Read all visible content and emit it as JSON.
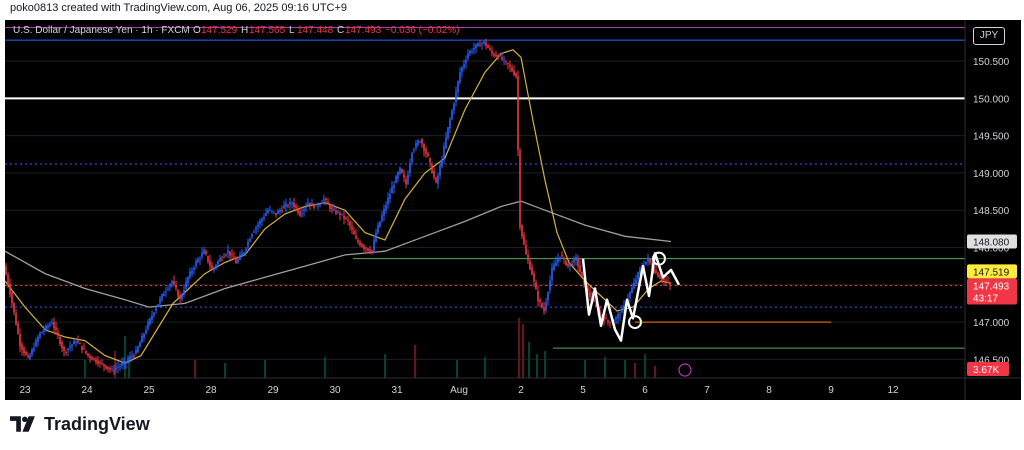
{
  "header": {
    "caption": "poko0813 created with TradingView.com, Aug 06, 2025 09:16 UTC+9"
  },
  "brand": {
    "name": "TradingView",
    "logo_icon": "tradingview-logo-icon"
  },
  "currency_label": "JPY",
  "colors": {
    "background": "#000000",
    "up_candle": "#2962ff",
    "down_candle": "#f23645",
    "fast_ma": "#d4b33a",
    "slow_ma": "#9e9e9e",
    "pink_line": "#b23ab2",
    "blue_line": "#2962ff",
    "white_line": "#ffffff",
    "dotted_blue": "#3b5bff",
    "green_line": "#4caf50",
    "orange_line": "#ff7a1a",
    "red_dotted": "#f23645",
    "volume_up": "#0c3d32",
    "volume_down": "#5a1a20",
    "pattern": "#ffffff"
  },
  "chart_data": {
    "type": "candlestick",
    "title": "U.S. Dollar / Japanese Yen · 1h · FXCM",
    "ohlc_legend": {
      "o_label": "O",
      "o": "147.529",
      "h_label": "H",
      "h": "147.565",
      "l_label": "L",
      "l": "147.448",
      "c_label": "C",
      "c": "147.493",
      "chg": "−0.036 (−0.02%)"
    },
    "xlim": [
      0,
      480
    ],
    "ylim": [
      146.25,
      151.05
    ],
    "y_ticks": [
      "146.500",
      "147.000",
      "147.500",
      "148.000",
      "148.500",
      "149.000",
      "149.500",
      "150.000",
      "150.500"
    ],
    "x_ticks": [
      {
        "label": "23",
        "x": 10
      },
      {
        "label": "24",
        "x": 41
      },
      {
        "label": "25",
        "x": 72
      },
      {
        "label": "28",
        "x": 103
      },
      {
        "label": "29",
        "x": 134
      },
      {
        "label": "30",
        "x": 165
      },
      {
        "label": "31",
        "x": 196
      },
      {
        "label": "Aug",
        "x": 227
      },
      {
        "label": "2",
        "x": 258
      },
      {
        "label": "5",
        "x": 289
      },
      {
        "label": "6",
        "x": 320
      },
      {
        "label": "7",
        "x": 351
      },
      {
        "label": "8",
        "x": 382
      },
      {
        "label": "9",
        "x": 413
      },
      {
        "label": "12",
        "x": 444
      }
    ],
    "price_path": [
      [
        0,
        147.75
      ],
      [
        3,
        147.4
      ],
      [
        8,
        146.7
      ],
      [
        12,
        146.5
      ],
      [
        18,
        146.85
      ],
      [
        24,
        147.0
      ],
      [
        30,
        146.6
      ],
      [
        36,
        146.75
      ],
      [
        42,
        146.55
      ],
      [
        48,
        146.45
      ],
      [
        54,
        146.35
      ],
      [
        60,
        146.45
      ],
      [
        66,
        146.6
      ],
      [
        70,
        146.85
      ],
      [
        75,
        147.15
      ],
      [
        80,
        147.4
      ],
      [
        84,
        147.55
      ],
      [
        88,
        147.3
      ],
      [
        92,
        147.6
      ],
      [
        96,
        147.8
      ],
      [
        100,
        147.95
      ],
      [
        104,
        147.7
      ],
      [
        108,
        147.85
      ],
      [
        112,
        147.95
      ],
      [
        116,
        147.8
      ],
      [
        120,
        147.95
      ],
      [
        124,
        148.2
      ],
      [
        128,
        148.35
      ],
      [
        132,
        148.5
      ],
      [
        136,
        148.45
      ],
      [
        140,
        148.55
      ],
      [
        144,
        148.6
      ],
      [
        148,
        148.45
      ],
      [
        152,
        148.6
      ],
      [
        156,
        148.55
      ],
      [
        160,
        148.65
      ],
      [
        164,
        148.5
      ],
      [
        168,
        148.45
      ],
      [
        172,
        148.35
      ],
      [
        176,
        148.1
      ],
      [
        180,
        148.0
      ],
      [
        184,
        147.95
      ],
      [
        186,
        148.2
      ],
      [
        190,
        148.5
      ],
      [
        194,
        148.8
      ],
      [
        198,
        149.05
      ],
      [
        201,
        148.85
      ],
      [
        204,
        149.3
      ],
      [
        208,
        149.45
      ],
      [
        212,
        149.2
      ],
      [
        216,
        148.85
      ],
      [
        219,
        149.2
      ],
      [
        222,
        149.6
      ],
      [
        225,
        149.95
      ],
      [
        228,
        150.35
      ],
      [
        232,
        150.6
      ],
      [
        236,
        150.7
      ],
      [
        240,
        150.75
      ],
      [
        244,
        150.6
      ],
      [
        248,
        150.55
      ],
      [
        252,
        150.45
      ],
      [
        256,
        150.3
      ],
      [
        258,
        148.3
      ],
      [
        261,
        147.9
      ],
      [
        264,
        147.65
      ],
      [
        267,
        147.3
      ],
      [
        270,
        147.15
      ],
      [
        274,
        147.7
      ],
      [
        278,
        147.9
      ],
      [
        282,
        147.75
      ],
      [
        286,
        147.85
      ],
      [
        290,
        147.5
      ],
      [
        294,
        147.3
      ],
      [
        298,
        147.1
      ],
      [
        302,
        147.0
      ],
      [
        306,
        147.05
      ],
      [
        310,
        147.2
      ],
      [
        314,
        147.45
      ],
      [
        318,
        147.7
      ],
      [
        322,
        147.85
      ],
      [
        324,
        147.72
      ],
      [
        328,
        147.6
      ],
      [
        333,
        147.5
      ]
    ],
    "fast_ma": [
      [
        0,
        147.55
      ],
      [
        10,
        147.2
      ],
      [
        20,
        146.9
      ],
      [
        30,
        146.8
      ],
      [
        40,
        146.75
      ],
      [
        50,
        146.55
      ],
      [
        60,
        146.45
      ],
      [
        68,
        146.55
      ],
      [
        76,
        146.9
      ],
      [
        84,
        147.25
      ],
      [
        92,
        147.45
      ],
      [
        100,
        147.65
      ],
      [
        110,
        147.8
      ],
      [
        120,
        147.9
      ],
      [
        130,
        148.25
      ],
      [
        140,
        148.45
      ],
      [
        150,
        148.55
      ],
      [
        160,
        148.6
      ],
      [
        170,
        148.5
      ],
      [
        180,
        148.2
      ],
      [
        190,
        148.1
      ],
      [
        200,
        148.65
      ],
      [
        210,
        149.0
      ],
      [
        220,
        149.2
      ],
      [
        230,
        149.85
      ],
      [
        240,
        150.35
      ],
      [
        248,
        150.6
      ],
      [
        254,
        150.65
      ],
      [
        258,
        150.55
      ],
      [
        264,
        149.7
      ],
      [
        270,
        148.9
      ],
      [
        276,
        148.2
      ],
      [
        282,
        147.8
      ],
      [
        290,
        147.55
      ],
      [
        298,
        147.35
      ],
      [
        306,
        147.15
      ],
      [
        314,
        147.2
      ],
      [
        322,
        147.45
      ],
      [
        328,
        147.55
      ],
      [
        333,
        147.52
      ]
    ],
    "slow_ma": [
      [
        0,
        147.95
      ],
      [
        20,
        147.65
      ],
      [
        40,
        147.45
      ],
      [
        60,
        147.3
      ],
      [
        72,
        147.2
      ],
      [
        90,
        147.25
      ],
      [
        110,
        147.45
      ],
      [
        130,
        147.6
      ],
      [
        150,
        147.75
      ],
      [
        170,
        147.9
      ],
      [
        190,
        147.95
      ],
      [
        210,
        148.15
      ],
      [
        230,
        148.35
      ],
      [
        248,
        148.55
      ],
      [
        258,
        148.62
      ],
      [
        270,
        148.5
      ],
      [
        290,
        148.3
      ],
      [
        310,
        148.15
      ],
      [
        333,
        148.08
      ]
    ],
    "volume": [
      [
        40,
        0.3
      ],
      [
        55,
        0.45
      ],
      [
        60,
        0.7
      ],
      [
        62,
        0.35
      ],
      [
        95,
        0.3
      ],
      [
        110,
        0.25
      ],
      [
        130,
        0.3
      ],
      [
        160,
        0.35
      ],
      [
        190,
        0.4
      ],
      [
        205,
        0.55
      ],
      [
        226,
        0.3
      ],
      [
        240,
        0.35
      ],
      [
        257,
        1.0
      ],
      [
        259,
        0.9
      ],
      [
        262,
        0.6
      ],
      [
        266,
        0.4
      ],
      [
        270,
        0.45
      ],
      [
        290,
        0.3
      ],
      [
        300,
        0.35
      ],
      [
        310,
        0.3
      ],
      [
        315,
        0.25
      ],
      [
        320,
        0.4
      ],
      [
        325,
        0.2
      ]
    ],
    "horizontal_lines": [
      {
        "name": "pink-level-line",
        "price": 150.95,
        "color": "#b23ab2",
        "x0": 0,
        "x1": 480,
        "dash": false,
        "width": 1
      },
      {
        "name": "blue-level-line",
        "price": 150.78,
        "color": "#2962ff",
        "x0": 0,
        "x1": 480,
        "dash": false,
        "width": 1
      },
      {
        "name": "white-level-line",
        "price": 150.0,
        "color": "#ffffff",
        "x0": 0,
        "x1": 480,
        "dash": false,
        "width": 2
      },
      {
        "name": "dotted-blue-upper-line",
        "price": 149.12,
        "color": "#3b5bff",
        "x0": 0,
        "x1": 480,
        "dash": true,
        "width": 1
      },
      {
        "name": "dotted-blue-lower-line",
        "price": 147.2,
        "color": "#3b5bff",
        "x0": 0,
        "x1": 480,
        "dash": true,
        "width": 1
      },
      {
        "name": "green-resistance-line",
        "price": 147.85,
        "color": "#4caf50",
        "x0": 174,
        "x1": 480,
        "dash": false,
        "width": 1
      },
      {
        "name": "green-support-line",
        "price": 146.65,
        "color": "#4caf50",
        "x0": 274,
        "x1": 480,
        "dash": false,
        "width": 1
      },
      {
        "name": "orange-level-line",
        "price": 147.0,
        "color": "#ff7a1a",
        "x0": 315,
        "x1": 413,
        "dash": false,
        "width": 1
      },
      {
        "name": "red-price-line",
        "price": 147.49,
        "color": "#f23645",
        "x0": 0,
        "x1": 480,
        "dash": true,
        "width": 1
      }
    ],
    "pattern_path": [
      [
        289,
        147.85
      ],
      [
        292,
        147.1
      ],
      [
        295,
        147.45
      ],
      [
        298,
        146.95
      ],
      [
        301,
        147.3
      ],
      [
        305,
        146.9
      ],
      [
        308,
        146.75
      ],
      [
        311,
        147.3
      ],
      [
        314,
        147.05
      ],
      [
        319,
        147.75
      ],
      [
        322,
        147.35
      ],
      [
        325,
        147.92
      ],
      [
        329,
        147.6
      ],
      [
        333,
        147.7
      ],
      [
        337,
        147.5
      ]
    ],
    "pattern_circles": [
      {
        "name": "pattern-circle-low",
        "x": 315,
        "price": 147.0
      },
      {
        "name": "pattern-circle-high",
        "x": 327,
        "price": 147.85
      }
    ],
    "price_labels": [
      {
        "name": "price-label-148080",
        "text": "148.080",
        "price": 148.08,
        "bg": "#e0e0e0",
        "fg": "#131722"
      },
      {
        "name": "price-label-147519",
        "text": "147.519",
        "price": 147.68,
        "bg": "#ffeb3b",
        "fg": "#131722"
      },
      {
        "name": "price-label-147493",
        "text": "147.493",
        "price": 147.49,
        "bg": "#f23645",
        "fg": "#ffffff"
      },
      {
        "name": "price-label-countdown",
        "text": "43:17",
        "price": 147.33,
        "bg": "#f23645",
        "fg": "#ffffff"
      }
    ],
    "volume_label": "3.67K"
  }
}
